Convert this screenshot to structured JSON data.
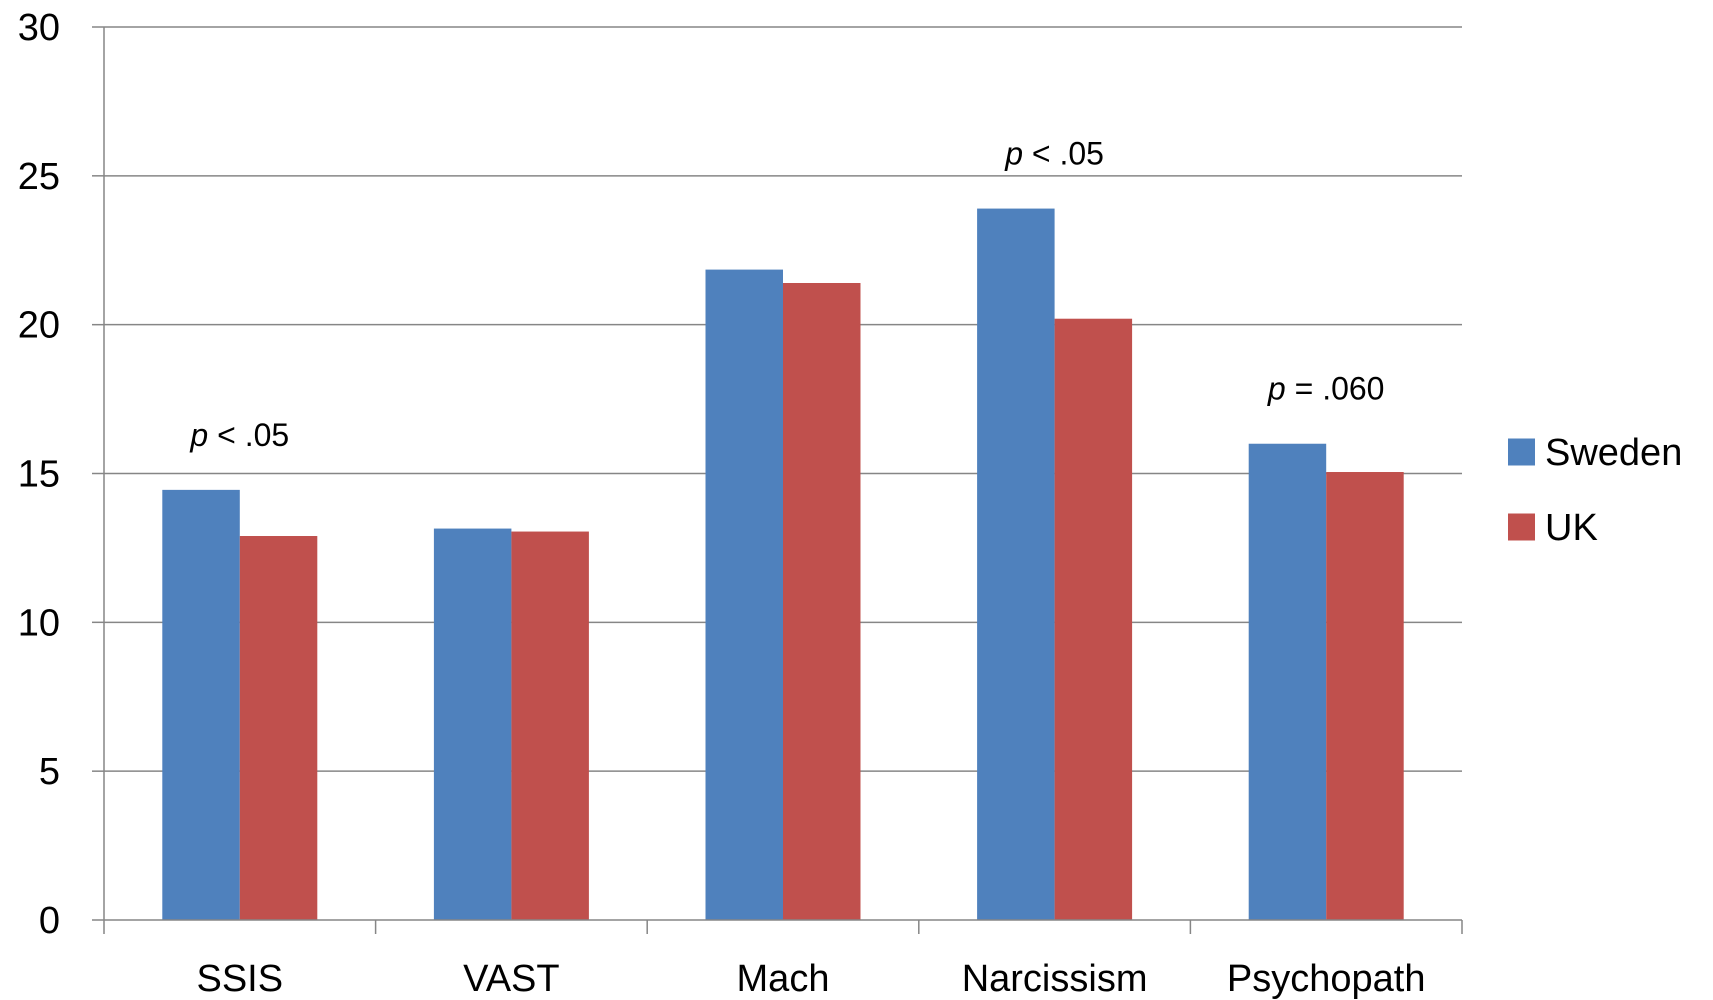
{
  "chart_data": {
    "type": "bar",
    "title": "",
    "xlabel": "",
    "ylabel": "",
    "categories": [
      "SSIS",
      "VAST",
      "Mach",
      "Narcissism",
      "Psychopath"
    ],
    "series": [
      {
        "name": "Sweden",
        "color": "#4F81BD",
        "values": [
          14.45,
          13.15,
          21.85,
          23.9,
          16.0
        ]
      },
      {
        "name": "UK",
        "color": "#C0504D",
        "values": [
          12.9,
          13.05,
          21.4,
          20.2,
          15.05
        ]
      }
    ],
    "ylim": [
      0,
      30
    ],
    "yticks": [
      "0",
      "5",
      "10",
      "15",
      "20",
      "25",
      "30"
    ],
    "grid": true,
    "legend_position": "right",
    "annotations": [
      {
        "category": "SSIS",
        "var": "p",
        "text": " < .05"
      },
      {
        "category": "Narcissism",
        "var": "p",
        "text": " < .05"
      },
      {
        "category": "Psychopath",
        "var": "p",
        "text": " = .060"
      }
    ]
  }
}
